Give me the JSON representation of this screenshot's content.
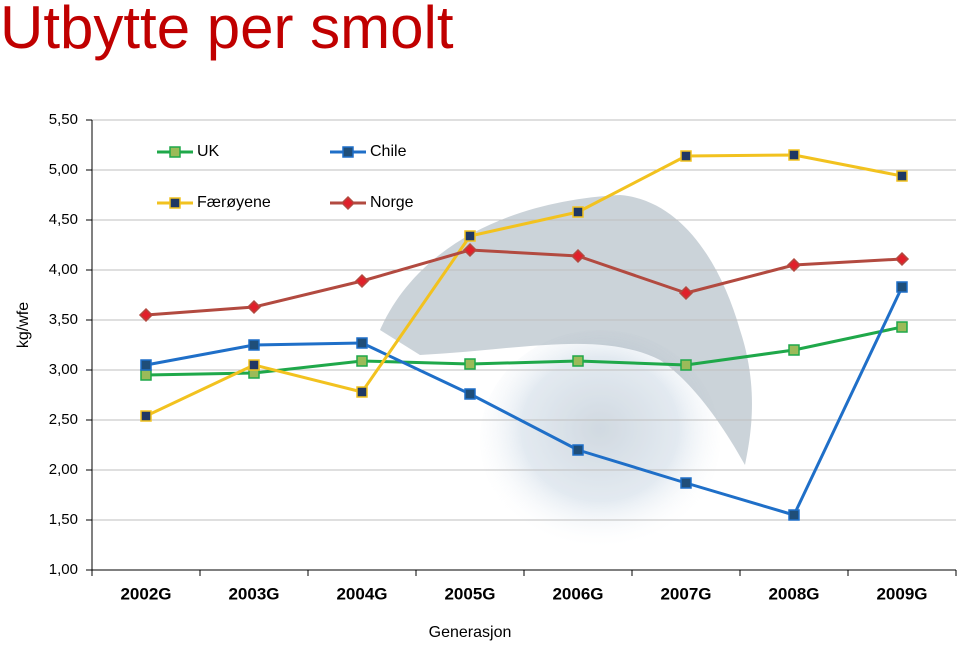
{
  "chart_data": {
    "type": "line",
    "title": "Utbytte per smolt",
    "x_label": "Generasjon",
    "y_label": "kg/wfe",
    "categories": [
      "2002G",
      "2003G",
      "2004G",
      "2005G",
      "2006G",
      "2007G",
      "2008G",
      "2009G"
    ],
    "series": [
      {
        "name": "UK",
        "color": "#1fa84a",
        "marker_color": "#9bbb59",
        "marker": "square",
        "values": [
          2.95,
          2.97,
          3.09,
          3.06,
          3.09,
          3.05,
          3.2,
          3.43
        ]
      },
      {
        "name": "Chile",
        "color": "#1f6fc8",
        "marker_color": "#1f4e79",
        "marker": "square",
        "values": [
          3.05,
          3.25,
          3.27,
          2.76,
          2.2,
          1.87,
          1.55,
          3.83
        ]
      },
      {
        "name": "Færøyene",
        "color": "#f2c21f",
        "marker_color": "#1f3864",
        "marker": "square",
        "values": [
          2.54,
          3.05,
          2.78,
          4.34,
          4.58,
          5.14,
          5.15,
          4.94
        ]
      },
      {
        "name": "Norge",
        "color": "#b24a40",
        "marker_color": "#e0202a",
        "marker": "diamond",
        "values": [
          3.55,
          3.63,
          3.89,
          4.2,
          4.14,
          3.77,
          4.05,
          4.11
        ]
      }
    ],
    "ylim": [
      1,
      5.5
    ],
    "yticks": [
      {
        "value": 1,
        "label": "1,00"
      },
      {
        "value": 1.5,
        "label": "1,50"
      },
      {
        "value": 2,
        "label": "2,00"
      },
      {
        "value": 2.5,
        "label": "2,50"
      },
      {
        "value": 3,
        "label": "3,00"
      },
      {
        "value": 3.5,
        "label": "3,50"
      },
      {
        "value": 4,
        "label": "4,00"
      },
      {
        "value": 4.5,
        "label": "4,50"
      },
      {
        "value": 5,
        "label": "5,00"
      },
      {
        "value": 5.5,
        "label": "5,50"
      }
    ],
    "grid": true,
    "legend": "top-left"
  }
}
